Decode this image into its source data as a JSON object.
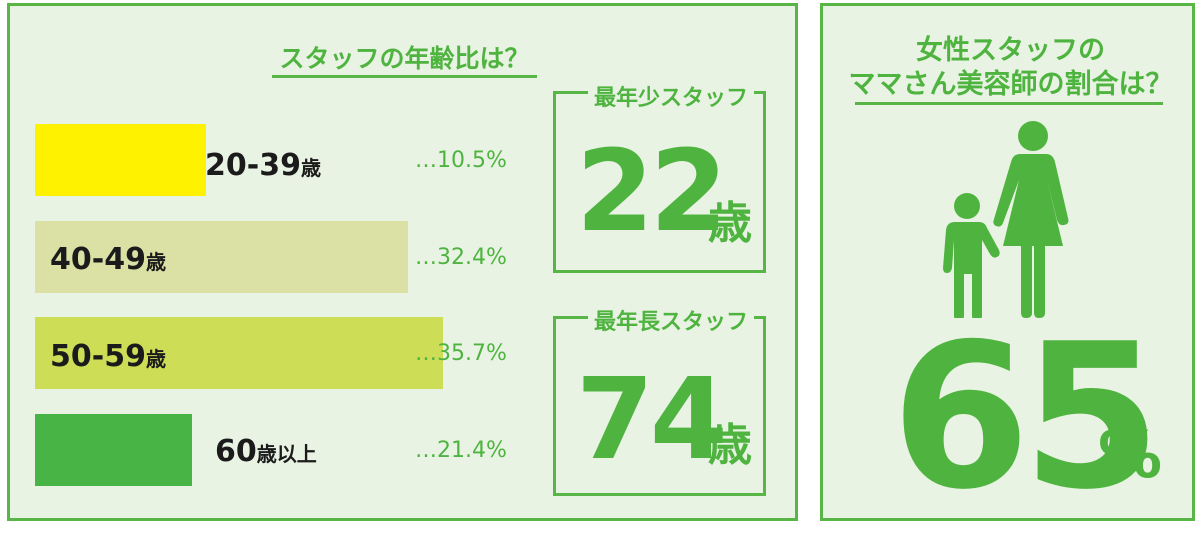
{
  "age_section": {
    "title": "スタッフの年齢比は？"
  },
  "chart_data": {
    "type": "bar",
    "title": "スタッフの年齢比は？",
    "orientation": "horizontal",
    "categories": [
      "20-39歳",
      "40-49歳",
      "50-59歳",
      "60歳以上"
    ],
    "values": [
      10.5,
      32.4,
      35.7,
      21.4
    ],
    "value_labels": [
      "…10.5%",
      "…32.4%",
      "…35.7%",
      "…21.4%"
    ],
    "unit": "%",
    "colors": [
      "#fff200",
      "#dbe0a4",
      "#cddd55",
      "#49b446"
    ],
    "label_parts": [
      {
        "big": "20-39",
        "small": "歳"
      },
      {
        "big": "40-49",
        "small": "歳"
      },
      {
        "big": "50-59",
        "small": "歳"
      },
      {
        "big": "60",
        "small": "歳以上"
      }
    ]
  },
  "youngest": {
    "label": "最年少スタッフ",
    "number": "22",
    "unit": "歳"
  },
  "oldest": {
    "label": "最年長スタッフ",
    "number": "74",
    "unit": "歳"
  },
  "mama_section": {
    "title_line1": "女性スタッフの",
    "title_line2": "ママさん美容師の割合は？",
    "percent": "65",
    "percent_unit": "%",
    "icon": "mother-and-child-icon"
  },
  "colors": {
    "accent_green": "#4fb43f",
    "panel_bg": "#e9f3e4",
    "border": "#58b646"
  }
}
